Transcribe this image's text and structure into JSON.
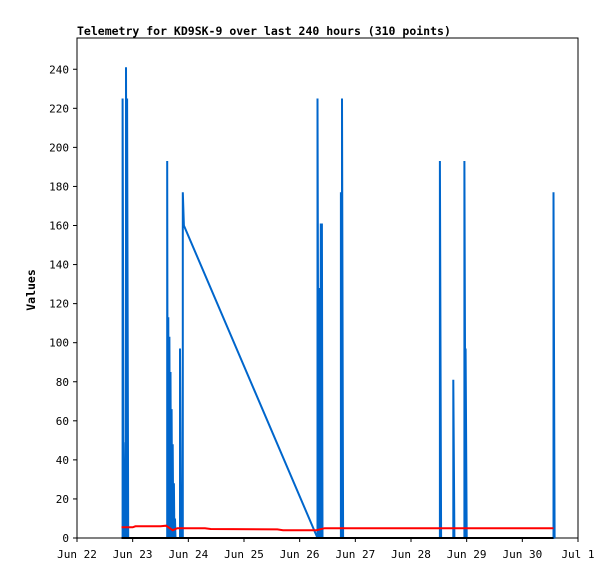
{
  "chart_data": {
    "type": "line",
    "title": "Telemetry for KD9SK-9 over last 240 hours (310 points)",
    "xlabel": "",
    "ylabel": "Values",
    "x_range": [
      0,
      9
    ],
    "x_unit": "days since Jun 22",
    "ylim": [
      0,
      256
    ],
    "x_ticks": [
      {
        "x": 0,
        "label": "Jun 22"
      },
      {
        "x": 1,
        "label": "Jun 23"
      },
      {
        "x": 2,
        "label": "Jun 24"
      },
      {
        "x": 3,
        "label": "Jun 25"
      },
      {
        "x": 4,
        "label": "Jun 26"
      },
      {
        "x": 5,
        "label": "Jun 27"
      },
      {
        "x": 6,
        "label": "Jun 28"
      },
      {
        "x": 7,
        "label": "Jun 29"
      },
      {
        "x": 8,
        "label": "Jun 30"
      },
      {
        "x": 9,
        "label": "Jul 1"
      }
    ],
    "y_ticks": [
      0,
      20,
      40,
      60,
      80,
      100,
      120,
      140,
      160,
      180,
      200,
      220,
      240
    ],
    "grid": false,
    "legend": "none",
    "series": [
      {
        "color": "#0066cc",
        "points": [
          [
            0.82,
            0
          ],
          [
            0.82,
            225
          ],
          [
            0.84,
            0
          ],
          [
            0.84,
            49
          ],
          [
            0.86,
            0
          ],
          [
            0.88,
            0
          ],
          [
            0.88,
            241
          ],
          [
            0.9,
            0
          ],
          [
            0.9,
            225
          ],
          [
            0.92,
            0
          ],
          [
            1.62,
            0
          ],
          [
            1.62,
            193
          ],
          [
            1.63,
            0
          ],
          [
            1.64,
            113
          ],
          [
            1.65,
            0
          ],
          [
            1.66,
            103
          ],
          [
            1.67,
            0
          ],
          [
            1.68,
            85
          ],
          [
            1.69,
            0
          ],
          [
            1.7,
            66
          ],
          [
            1.71,
            0
          ],
          [
            1.72,
            48
          ],
          [
            1.73,
            0
          ],
          [
            1.74,
            28
          ],
          [
            1.75,
            0
          ],
          [
            1.76,
            10
          ],
          [
            1.77,
            0
          ],
          [
            1.85,
            0
          ],
          [
            1.85,
            97
          ],
          [
            1.87,
            0
          ],
          [
            1.9,
            0
          ],
          [
            1.9,
            177
          ],
          [
            1.92,
            160
          ],
          [
            4.32,
            0
          ],
          [
            4.32,
            225
          ],
          [
            4.34,
            0
          ],
          [
            4.36,
            128
          ],
          [
            4.37,
            0
          ],
          [
            4.38,
            161
          ],
          [
            4.39,
            0
          ],
          [
            4.4,
            161
          ],
          [
            4.41,
            0
          ],
          [
            4.74,
            0
          ],
          [
            4.74,
            177
          ],
          [
            4.76,
            0
          ],
          [
            4.76,
            225
          ],
          [
            4.78,
            0
          ],
          [
            6.52,
            0
          ],
          [
            6.52,
            193
          ],
          [
            6.54,
            0
          ],
          [
            6.76,
            0
          ],
          [
            6.76,
            81
          ],
          [
            6.78,
            0
          ],
          [
            6.96,
            0
          ],
          [
            6.96,
            193
          ],
          [
            6.98,
            0
          ],
          [
            6.98,
            97
          ],
          [
            7.0,
            0
          ],
          [
            8.56,
            0
          ],
          [
            8.56,
            177
          ],
          [
            8.58,
            0
          ]
        ]
      },
      {
        "color": "#ff0000",
        "points": [
          [
            0.8,
            5.5
          ],
          [
            1.0,
            5.5
          ],
          [
            1.05,
            6
          ],
          [
            1.5,
            6
          ],
          [
            1.6,
            6.3
          ],
          [
            1.72,
            4
          ],
          [
            1.8,
            5
          ],
          [
            2.3,
            5
          ],
          [
            2.4,
            4.6
          ],
          [
            3.6,
            4.4
          ],
          [
            3.7,
            4
          ],
          [
            4.3,
            4
          ],
          [
            4.45,
            5
          ],
          [
            5.5,
            5
          ],
          [
            8.56,
            5
          ]
        ]
      },
      {
        "color": "#000000",
        "points": [
          [
            0.8,
            0
          ],
          [
            8.56,
            0
          ]
        ]
      }
    ]
  }
}
